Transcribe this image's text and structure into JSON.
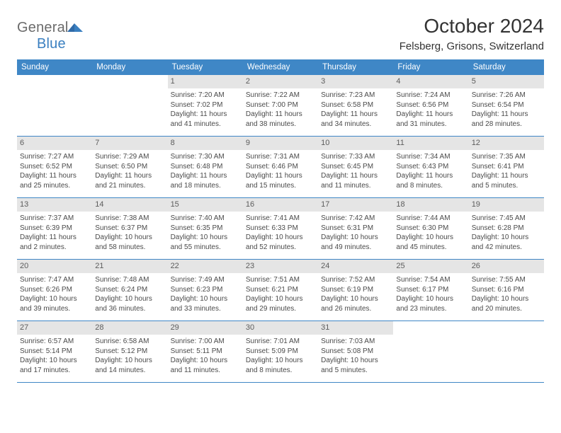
{
  "logo": {
    "part1": "General",
    "part2": "Blue"
  },
  "title": "October 2024",
  "location": "Felsberg, Grisons, Switzerland",
  "colors": {
    "header_bg": "#3f87c6",
    "header_text": "#ffffff",
    "daynum_bg": "#e5e5e5",
    "rule": "#3f87c6",
    "body_text": "#4a4a4a",
    "logo_gray": "#6b6b6b",
    "logo_blue": "#3a7fc0"
  },
  "day_headers": [
    "Sunday",
    "Monday",
    "Tuesday",
    "Wednesday",
    "Thursday",
    "Friday",
    "Saturday"
  ],
  "weeks": [
    [
      {
        "n": "",
        "sunrise": "",
        "sunset": "",
        "day_h": "",
        "day_m": ""
      },
      {
        "n": "",
        "sunrise": "",
        "sunset": "",
        "day_h": "",
        "day_m": ""
      },
      {
        "n": "1",
        "sunrise": "7:20 AM",
        "sunset": "7:02 PM",
        "day_h": "11",
        "day_m": "41"
      },
      {
        "n": "2",
        "sunrise": "7:22 AM",
        "sunset": "7:00 PM",
        "day_h": "11",
        "day_m": "38"
      },
      {
        "n": "3",
        "sunrise": "7:23 AM",
        "sunset": "6:58 PM",
        "day_h": "11",
        "day_m": "34"
      },
      {
        "n": "4",
        "sunrise": "7:24 AM",
        "sunset": "6:56 PM",
        "day_h": "11",
        "day_m": "31"
      },
      {
        "n": "5",
        "sunrise": "7:26 AM",
        "sunset": "6:54 PM",
        "day_h": "11",
        "day_m": "28"
      }
    ],
    [
      {
        "n": "6",
        "sunrise": "7:27 AM",
        "sunset": "6:52 PM",
        "day_h": "11",
        "day_m": "25"
      },
      {
        "n": "7",
        "sunrise": "7:29 AM",
        "sunset": "6:50 PM",
        "day_h": "11",
        "day_m": "21"
      },
      {
        "n": "8",
        "sunrise": "7:30 AM",
        "sunset": "6:48 PM",
        "day_h": "11",
        "day_m": "18"
      },
      {
        "n": "9",
        "sunrise": "7:31 AM",
        "sunset": "6:46 PM",
        "day_h": "11",
        "day_m": "15"
      },
      {
        "n": "10",
        "sunrise": "7:33 AM",
        "sunset": "6:45 PM",
        "day_h": "11",
        "day_m": "11"
      },
      {
        "n": "11",
        "sunrise": "7:34 AM",
        "sunset": "6:43 PM",
        "day_h": "11",
        "day_m": "8"
      },
      {
        "n": "12",
        "sunrise": "7:35 AM",
        "sunset": "6:41 PM",
        "day_h": "11",
        "day_m": "5"
      }
    ],
    [
      {
        "n": "13",
        "sunrise": "7:37 AM",
        "sunset": "6:39 PM",
        "day_h": "11",
        "day_m": "2"
      },
      {
        "n": "14",
        "sunrise": "7:38 AM",
        "sunset": "6:37 PM",
        "day_h": "10",
        "day_m": "58"
      },
      {
        "n": "15",
        "sunrise": "7:40 AM",
        "sunset": "6:35 PM",
        "day_h": "10",
        "day_m": "55"
      },
      {
        "n": "16",
        "sunrise": "7:41 AM",
        "sunset": "6:33 PM",
        "day_h": "10",
        "day_m": "52"
      },
      {
        "n": "17",
        "sunrise": "7:42 AM",
        "sunset": "6:31 PM",
        "day_h": "10",
        "day_m": "49"
      },
      {
        "n": "18",
        "sunrise": "7:44 AM",
        "sunset": "6:30 PM",
        "day_h": "10",
        "day_m": "45"
      },
      {
        "n": "19",
        "sunrise": "7:45 AM",
        "sunset": "6:28 PM",
        "day_h": "10",
        "day_m": "42"
      }
    ],
    [
      {
        "n": "20",
        "sunrise": "7:47 AM",
        "sunset": "6:26 PM",
        "day_h": "10",
        "day_m": "39"
      },
      {
        "n": "21",
        "sunrise": "7:48 AM",
        "sunset": "6:24 PM",
        "day_h": "10",
        "day_m": "36"
      },
      {
        "n": "22",
        "sunrise": "7:49 AM",
        "sunset": "6:23 PM",
        "day_h": "10",
        "day_m": "33"
      },
      {
        "n": "23",
        "sunrise": "7:51 AM",
        "sunset": "6:21 PM",
        "day_h": "10",
        "day_m": "29"
      },
      {
        "n": "24",
        "sunrise": "7:52 AM",
        "sunset": "6:19 PM",
        "day_h": "10",
        "day_m": "26"
      },
      {
        "n": "25",
        "sunrise": "7:54 AM",
        "sunset": "6:17 PM",
        "day_h": "10",
        "day_m": "23"
      },
      {
        "n": "26",
        "sunrise": "7:55 AM",
        "sunset": "6:16 PM",
        "day_h": "10",
        "day_m": "20"
      }
    ],
    [
      {
        "n": "27",
        "sunrise": "6:57 AM",
        "sunset": "5:14 PM",
        "day_h": "10",
        "day_m": "17"
      },
      {
        "n": "28",
        "sunrise": "6:58 AM",
        "sunset": "5:12 PM",
        "day_h": "10",
        "day_m": "14"
      },
      {
        "n": "29",
        "sunrise": "7:00 AM",
        "sunset": "5:11 PM",
        "day_h": "10",
        "day_m": "11"
      },
      {
        "n": "30",
        "sunrise": "7:01 AM",
        "sunset": "5:09 PM",
        "day_h": "10",
        "day_m": "8"
      },
      {
        "n": "31",
        "sunrise": "7:03 AM",
        "sunset": "5:08 PM",
        "day_h": "10",
        "day_m": "5"
      },
      {
        "n": "",
        "sunrise": "",
        "sunset": "",
        "day_h": "",
        "day_m": ""
      },
      {
        "n": "",
        "sunrise": "",
        "sunset": "",
        "day_h": "",
        "day_m": ""
      }
    ]
  ]
}
